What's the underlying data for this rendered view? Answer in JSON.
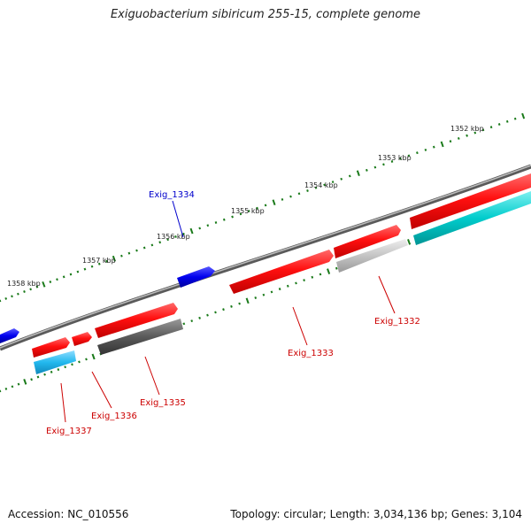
{
  "title": "Exiguobacterium sibiricum 255-15, complete genome",
  "accession": "Accession: NC_010556",
  "topology": "Topology: circular; Length: 3,034,136 bp; Genes: 3,104",
  "colors": {
    "forward_gene": "#ff0000",
    "reverse_gene": "#ff0000",
    "blue_gene": "#0000ee",
    "cds_cyan": "#00c8c8",
    "cds_sky": "#22b8ee",
    "grey_dark": "#555555",
    "grey_light": "#bbbbbb",
    "backbone": "#888888",
    "ticks": "#1a7a1a",
    "label_red": "#cc0000",
    "label_blue": "#0000cc"
  },
  "scale_labels": [
    "1352 kbp",
    "1353 kbp",
    "1354 kbp",
    "1355 kbp",
    "1356 kbp",
    "1357 kbp",
    "1358 kbp"
  ],
  "gene_labels": [
    {
      "id": "Exig_1334",
      "color": "blue"
    },
    {
      "id": "Exig_1332",
      "color": "red"
    },
    {
      "id": "Exig_1333",
      "color": "red"
    },
    {
      "id": "Exig_1335",
      "color": "red"
    },
    {
      "id": "Exig_1336",
      "color": "red"
    },
    {
      "id": "Exig_1337",
      "color": "red"
    }
  ]
}
